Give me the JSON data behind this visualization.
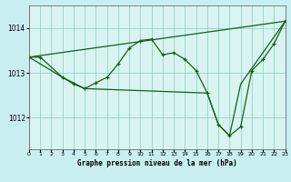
{
  "title": "Graphe pression niveau de la mer (hPa)",
  "bg_color": "#c8eef0",
  "plot_bg_color": "#d8f4f0",
  "line_color": "#1a5c1a",
  "grid_color": "#88ccbb",
  "xlim": [
    0,
    23
  ],
  "ylim": [
    1011.3,
    1014.5
  ],
  "yticks": [
    1012,
    1013,
    1014
  ],
  "xticks": [
    0,
    1,
    2,
    3,
    4,
    5,
    6,
    7,
    8,
    9,
    10,
    11,
    12,
    13,
    14,
    15,
    16,
    17,
    18,
    19,
    20,
    21,
    22,
    23
  ],
  "line_zigzag": [
    [
      0,
      1013.35
    ],
    [
      1,
      1013.35
    ],
    [
      3,
      1012.9
    ],
    [
      4,
      1012.75
    ],
    [
      5,
      1012.65
    ],
    [
      6,
      1012.78
    ],
    [
      7,
      1012.9
    ],
    [
      8,
      1013.2
    ],
    [
      9,
      1013.55
    ],
    [
      10,
      1013.72
    ],
    [
      11,
      1013.75
    ],
    [
      12,
      1013.4
    ],
    [
      13,
      1013.45
    ],
    [
      14,
      1013.3
    ],
    [
      15,
      1013.05
    ],
    [
      16,
      1012.55
    ],
    [
      17,
      1011.85
    ],
    [
      18,
      1011.6
    ],
    [
      19,
      1011.8
    ],
    [
      20,
      1013.05
    ],
    [
      21,
      1013.3
    ],
    [
      22,
      1013.65
    ],
    [
      23,
      1014.15
    ]
  ],
  "line_straight_up": [
    [
      0,
      1013.35
    ],
    [
      23,
      1014.15
    ]
  ],
  "line_broad_v": [
    [
      0,
      1013.35
    ],
    [
      3,
      1012.9
    ],
    [
      5,
      1012.65
    ],
    [
      16,
      1012.55
    ],
    [
      17,
      1011.85
    ],
    [
      18,
      1011.6
    ],
    [
      19,
      1012.75
    ],
    [
      23,
      1014.15
    ]
  ]
}
